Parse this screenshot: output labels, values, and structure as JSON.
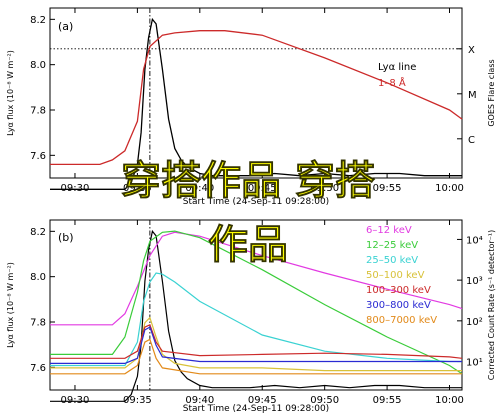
{
  "caption": {
    "line1": "穿搭作品 穿搭",
    "line2": "作品"
  },
  "colors": {
    "caption": "#ffff00",
    "lya_line": "#000000",
    "goes": "#cc2a2a"
  },
  "chart_data": [
    {
      "type": "line",
      "panel": "(a)",
      "ylabel": "Lyα flux (10⁻⁸ W m⁻²)",
      "right_ylabel": "GOES Flare class",
      "xlabel": "Start Time (24-Sep-11 09:28:00)",
      "x_unit": "time (hh:mm)",
      "xlim": [
        "09:30",
        "10:00"
      ],
      "xticks": [
        "09:30",
        "09:35",
        "09:40",
        "09:45",
        "09:50",
        "09:55",
        "10:00"
      ],
      "ylim": [
        7.5,
        8.25
      ],
      "yticks": [
        "7.6",
        "7.8",
        "8.0",
        "8.2"
      ],
      "right_ticks": [
        "X",
        "M",
        "C"
      ],
      "x_flare_class_line": 8.07,
      "peak_time": "09:36",
      "series": [
        {
          "name": "Lyα line",
          "color": "#000000",
          "x": [
            "09:28",
            "09:30",
            "09:32",
            "09:34",
            "09:34.5",
            "09:35",
            "09:35.3",
            "09:35.6",
            "09:35.9",
            "09:36.2",
            "09:36.5",
            "09:37",
            "09:37.5",
            "09:38",
            "09:38.5",
            "09:39",
            "09:40",
            "09:41",
            "09:42",
            "09:44",
            "09:46",
            "09:48",
            "09:50",
            "09:52",
            "09:54",
            "09:56",
            "09:58",
            "10:00",
            "10:01"
          ],
          "values": [
            7.45,
            7.45,
            7.45,
            7.45,
            7.48,
            7.56,
            7.7,
            7.98,
            8.12,
            8.2,
            8.18,
            7.98,
            7.76,
            7.63,
            7.58,
            7.55,
            7.52,
            7.51,
            7.51,
            7.51,
            7.52,
            7.51,
            7.52,
            7.51,
            7.52,
            7.52,
            7.51,
            7.51,
            7.51
          ]
        },
        {
          "name": "1–8 Å",
          "color": "#cc2a2a",
          "x": [
            "09:28",
            "09:32",
            "09:33",
            "09:34",
            "09:35",
            "09:35.5",
            "09:36",
            "09:37",
            "09:38",
            "09:40",
            "09:42",
            "09:45",
            "09:50",
            "09:55",
            "10:00",
            "10:01"
          ],
          "values": [
            7.56,
            7.56,
            7.58,
            7.62,
            7.75,
            7.98,
            8.08,
            8.13,
            8.14,
            8.15,
            8.15,
            8.13,
            8.03,
            7.92,
            7.8,
            7.76
          ]
        }
      ]
    },
    {
      "type": "line",
      "panel": "(b)",
      "ylabel": "Lyα flux (10⁻⁸ W m⁻²)",
      "right_ylabel": "Corrected Count Rate (s⁻¹ detector⁻¹)",
      "xlabel": "Start Time (24-Sep-11 09:28:00)",
      "x_unit": "time (hh:mm)",
      "xlim": [
        "09:30",
        "10:00"
      ],
      "xticks": [
        "09:30",
        "09:35",
        "09:40",
        "09:45",
        "09:50",
        "09:55",
        "10:00"
      ],
      "ylim": [
        7.5,
        8.25
      ],
      "yticks": [
        "7.6",
        "7.8",
        "8.0",
        "8.2"
      ],
      "right_ticks": [
        "10⁴",
        "10³",
        "10²",
        "10¹"
      ],
      "right_scale": "log",
      "right_ylim": [
        2,
        30000
      ],
      "peak_time": "09:36",
      "series": [
        {
          "name": "Lyα line",
          "axis": "left",
          "color": "#000000",
          "x": [
            "09:28",
            "09:30",
            "09:32",
            "09:34",
            "09:34.5",
            "09:35",
            "09:35.3",
            "09:35.6",
            "09:35.9",
            "09:36.2",
            "09:36.5",
            "09:37",
            "09:37.5",
            "09:38",
            "09:38.5",
            "09:39",
            "09:40",
            "09:41",
            "09:42",
            "09:44",
            "09:46",
            "09:48",
            "09:50",
            "09:52",
            "09:54",
            "09:56",
            "09:58",
            "10:00",
            "10:01"
          ],
          "values": [
            7.45,
            7.45,
            7.45,
            7.45,
            7.48,
            7.56,
            7.7,
            7.98,
            8.12,
            8.2,
            8.18,
            7.98,
            7.76,
            7.63,
            7.58,
            7.55,
            7.52,
            7.51,
            7.51,
            7.51,
            7.52,
            7.51,
            7.52,
            7.51,
            7.52,
            7.52,
            7.51,
            7.51,
            7.51
          ]
        },
        {
          "name": "6–12 keV",
          "axis": "right",
          "color": "#e23ae2",
          "x": [
            "09:28",
            "09:33",
            "09:34",
            "09:35",
            "09:36",
            "09:37",
            "09:38",
            "09:40",
            "09:45",
            "09:50",
            "09:55",
            "10:00",
            "10:01"
          ],
          "values": [
            80,
            80,
            150,
            700,
            4000,
            12000,
            15000,
            12000,
            4000,
            1500,
            600,
            250,
            200
          ]
        },
        {
          "name": "12–25 keV",
          "axis": "right",
          "color": "#3acc3a",
          "x": [
            "09:28",
            "09:33",
            "09:34",
            "09:35",
            "09:35.5",
            "09:36",
            "09:37",
            "09:38",
            "09:40",
            "09:45",
            "09:50",
            "09:55",
            "10:00",
            "10:01"
          ],
          "values": [
            15,
            15,
            40,
            500,
            3000,
            9000,
            15000,
            16000,
            11000,
            1800,
            250,
            40,
            8,
            5
          ]
        },
        {
          "name": "25–50 keV",
          "axis": "right",
          "color": "#3ad2d2",
          "x": [
            "09:28",
            "09:34",
            "09:35",
            "09:35.5",
            "09:36",
            "09:36.5",
            "09:37",
            "09:38",
            "09:40",
            "09:45",
            "09:50",
            "09:55",
            "10:00",
            "10:01"
          ],
          "values": [
            8,
            8,
            30,
            300,
            900,
            1500,
            1400,
            900,
            300,
            45,
            18,
            12,
            10,
            10
          ]
        },
        {
          "name": "50–100 keV",
          "axis": "right",
          "color": "#d8c23a",
          "x": [
            "09:28",
            "09:34",
            "09:35",
            "09:35.6",
            "09:36",
            "09:36.5",
            "09:37",
            "09:38",
            "09:40",
            "09:45",
            "09:50",
            "09:55",
            "10:00",
            "10:01"
          ],
          "values": [
            7,
            7,
            12,
            90,
            120,
            40,
            15,
            9,
            7,
            7,
            6,
            6,
            6,
            6
          ]
        },
        {
          "name": "100–300 keV",
          "axis": "right",
          "color": "#cc2a2a",
          "x": [
            "09:28",
            "09:34",
            "09:35",
            "09:35.6",
            "09:36",
            "09:36.5",
            "09:37",
            "09:40",
            "09:45",
            "09:50",
            "09:55",
            "10:00",
            "10:01"
          ],
          "values": [
            12,
            12,
            18,
            70,
            80,
            30,
            18,
            14,
            15,
            16,
            15,
            13,
            12
          ]
        },
        {
          "name": "300–800 keV",
          "axis": "right",
          "color": "#2a2ad2",
          "x": [
            "09:28",
            "09:34",
            "09:35",
            "09:35.6",
            "09:36",
            "09:36.5",
            "09:37",
            "09:40",
            "09:45",
            "09:50",
            "09:55",
            "10:00",
            "10:01"
          ],
          "values": [
            9,
            9,
            12,
            60,
            70,
            25,
            13,
            10,
            10,
            10,
            10,
            10,
            10
          ]
        },
        {
          "name": "800–7000 keV",
          "axis": "right",
          "color": "#e28a1a",
          "x": [
            "09:28",
            "09:34",
            "09:35",
            "09:35.6",
            "09:36",
            "09:36.5",
            "09:37",
            "09:40",
            "09:45",
            "09:50",
            "09:55",
            "10:00",
            "10:01"
          ],
          "values": [
            5,
            5,
            8,
            30,
            35,
            12,
            7,
            5,
            5,
            5,
            5,
            5,
            5
          ]
        }
      ]
    }
  ]
}
